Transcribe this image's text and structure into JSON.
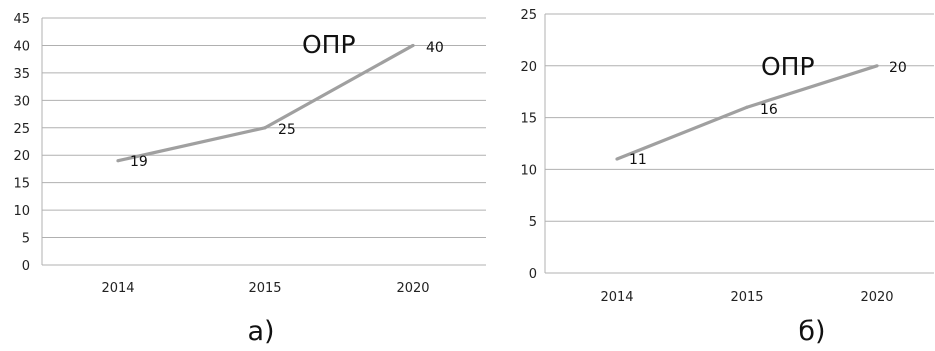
{
  "chart_data": [
    {
      "type": "line",
      "categories": [
        "2014",
        "2015",
        "2020"
      ],
      "series": [
        {
          "values": [
            19,
            25,
            40
          ]
        }
      ],
      "data_labels": [
        "19",
        "25",
        "40"
      ],
      "annotation": "ОПР",
      "caption": "а)",
      "ylim": [
        0,
        45
      ],
      "yticks": [
        0,
        5,
        10,
        15,
        20,
        25,
        30,
        35,
        40,
        45
      ],
      "grid": true,
      "line_color": "#a0a0a0",
      "grid_color": "#b0b0b0"
    },
    {
      "type": "line",
      "categories": [
        "2014",
        "2015",
        "2020"
      ],
      "series": [
        {
          "values": [
            11,
            16,
            20
          ]
        }
      ],
      "data_labels": [
        "11",
        "16",
        "20"
      ],
      "annotation": "ОПР",
      "caption": "б)",
      "ylim": [
        0,
        25
      ],
      "yticks": [
        0,
        5,
        10,
        15,
        20,
        25
      ],
      "grid": true,
      "line_color": "#a0a0a0",
      "grid_color": "#b0b0b0"
    }
  ]
}
